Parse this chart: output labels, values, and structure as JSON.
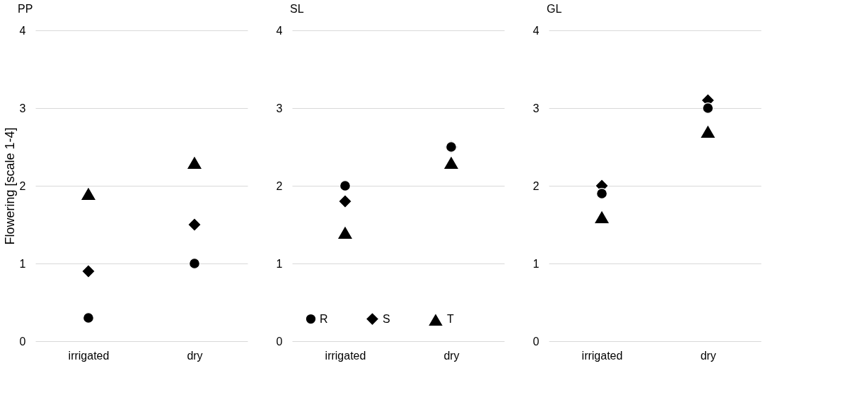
{
  "chart_data": [
    {
      "type": "scatter",
      "title": "PP",
      "ylabel": "Flowering [scale 1-4]",
      "categories": [
        "irrigated",
        "dry"
      ],
      "ylim": [
        0,
        4
      ],
      "yticks": [
        0,
        1,
        2,
        3,
        4
      ],
      "grid": "y",
      "series": [
        {
          "color": "#000000",
          "marker": "circle",
          "values": [
            0.3,
            1.0
          ]
        },
        {
          "color": "#000000",
          "marker": "diamond",
          "values": [
            0.9,
            1.5
          ]
        },
        {
          "color": "#000000",
          "marker": "triangle",
          "values": [
            1.9,
            2.3
          ]
        }
      ]
    },
    {
      "type": "scatter",
      "title": "SL",
      "categories": [
        "irrigated",
        "dry"
      ],
      "ylim": [
        0,
        4
      ],
      "yticks": [
        0,
        1,
        2,
        3,
        4
      ],
      "grid": "y",
      "legend": "bottom",
      "series": [
        {
          "name": "R",
          "color": "#000000",
          "marker": "circle",
          "values": [
            2.0,
            2.5
          ]
        },
        {
          "name": "S",
          "color": "#000000",
          "marker": "diamond",
          "values": [
            1.8,
            2.5
          ]
        },
        {
          "name": "T",
          "color": "#000000",
          "marker": "triangle",
          "values": [
            1.4,
            2.3
          ]
        }
      ]
    },
    {
      "type": "scatter",
      "title": "GL",
      "categories": [
        "irrigated",
        "dry"
      ],
      "ylim": [
        0,
        4
      ],
      "yticks": [
        0,
        1,
        2,
        3,
        4
      ],
      "grid": "y",
      "series": [
        {
          "color": "#000000",
          "marker": "circle",
          "values": [
            1.9,
            3.0
          ]
        },
        {
          "color": "#000000",
          "marker": "diamond",
          "values": [
            2.0,
            3.1
          ]
        },
        {
          "color": "#000000",
          "marker": "triangle",
          "values": [
            1.6,
            2.7
          ]
        }
      ]
    }
  ]
}
